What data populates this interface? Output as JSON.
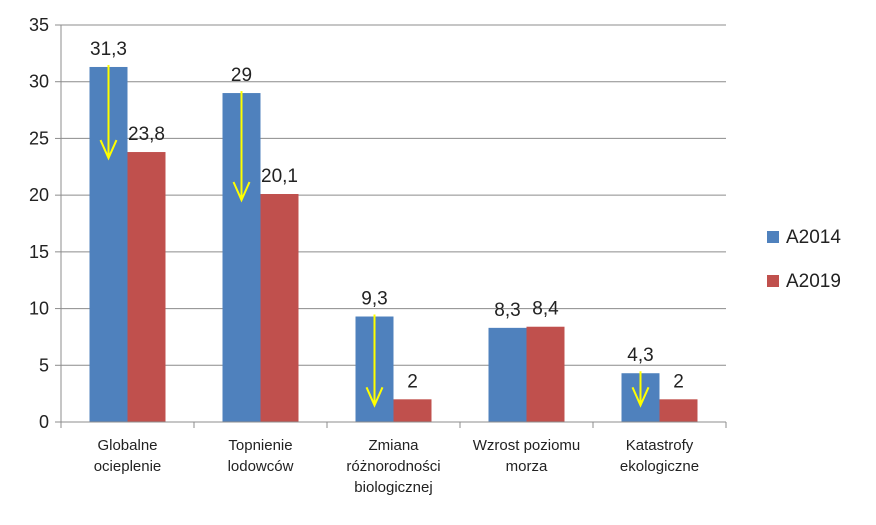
{
  "chart_data": {
    "type": "bar",
    "title": "",
    "xlabel": "",
    "ylabel": "",
    "ylim": [
      0,
      35
    ],
    "ytick_step": 5,
    "yticks": [
      "0",
      "5",
      "10",
      "15",
      "20",
      "25",
      "30",
      "35"
    ],
    "grid": true,
    "legend_position": "right",
    "categories": [
      [
        "Globalne",
        "ocieplenie"
      ],
      [
        "Topnienie",
        "lodowców"
      ],
      [
        "Zmiana",
        "różnorodności",
        "biologicznej"
      ],
      [
        "Wzrost poziomu",
        "morza"
      ],
      [
        "Katastrofy",
        "ekologiczne"
      ]
    ],
    "series": [
      {
        "name": "A2014",
        "color": "#4F81BD",
        "values": [
          31.3,
          29,
          9.3,
          8.3,
          4.3
        ],
        "labels": [
          "31,3",
          "29",
          "9,3",
          "8,3",
          "4,3"
        ]
      },
      {
        "name": "A2019",
        "color": "#C0504D",
        "values": [
          23.8,
          20.1,
          2,
          8.4,
          2
        ],
        "labels": [
          "23,8",
          "20,1",
          "2",
          "8,4",
          "2"
        ]
      }
    ],
    "annotations": {
      "type": "decrease-arrows",
      "color": "#FFFF00",
      "arrows": [
        {
          "category": 0,
          "from": 31.3,
          "to": 23.8
        },
        {
          "category": 1,
          "from": 29,
          "to": 20.1
        },
        {
          "category": 2,
          "from": 9.3,
          "to": 2
        },
        {
          "category": 4,
          "from": 4.3,
          "to": 2
        }
      ]
    }
  }
}
